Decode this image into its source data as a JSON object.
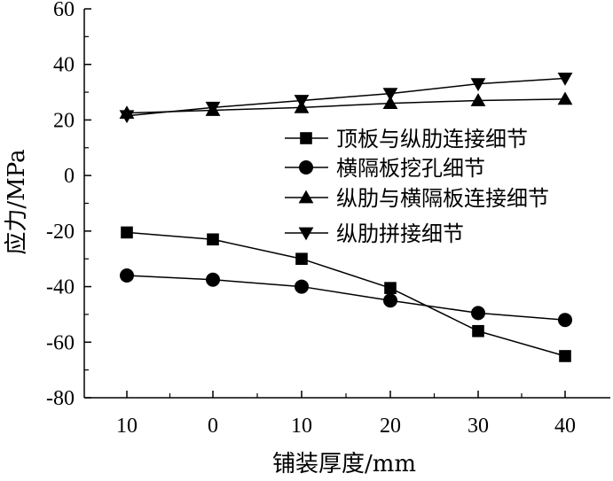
{
  "chart_data": {
    "type": "line",
    "title": "",
    "xlabel": "铺装厚度/mm",
    "ylabel": "应力/MPa",
    "categories": [
      "10",
      "0",
      "10",
      "20",
      "30",
      "40"
    ],
    "ylim": [
      -80,
      60
    ],
    "yticks": [
      "60",
      "40",
      "20",
      "0",
      "-20",
      "-40",
      "-60",
      "-80"
    ],
    "ytick_values": [
      60,
      40,
      20,
      0,
      -20,
      -40,
      -60,
      -80
    ],
    "grid": false,
    "legend_position": "right",
    "series": [
      {
        "name": "顶板与纵肋连接细节",
        "marker": "square",
        "values": [
          -20.5,
          -23,
          -30,
          -40.5,
          -56,
          -65
        ]
      },
      {
        "name": "横隔板挖孔细节",
        "marker": "circle",
        "values": [
          -36,
          -37.5,
          -40,
          -45,
          -49.5,
          -52
        ]
      },
      {
        "name": "纵肋与横隔板连接细节",
        "marker": "triangle-up",
        "values": [
          22.5,
          23.5,
          24.5,
          26,
          27,
          27.5
        ]
      },
      {
        "name": "纵肋拼接细节",
        "marker": "triangle-down",
        "values": [
          21.5,
          24.5,
          27,
          29.5,
          33,
          35
        ]
      }
    ]
  }
}
